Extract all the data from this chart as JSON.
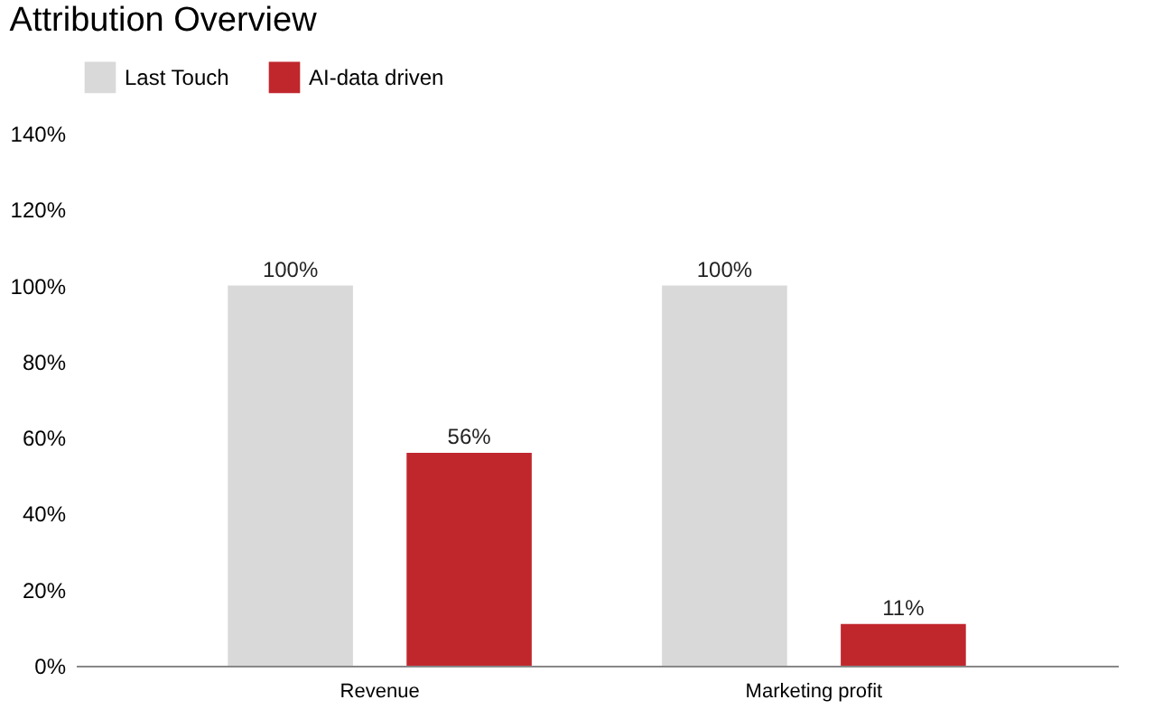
{
  "chart_data": {
    "type": "bar",
    "title": "Attribution Overview",
    "categories": [
      "Revenue",
      "Marketing profit"
    ],
    "series": [
      {
        "name": "Last Touch",
        "color": "#d9d9d9",
        "values": [
          100,
          100
        ],
        "value_labels": [
          "100%",
          "100%"
        ]
      },
      {
        "name": "AI-data driven",
        "color": "#c0272d",
        "values": [
          56,
          11
        ],
        "value_labels": [
          "56%",
          "11%"
        ]
      }
    ],
    "ylim": [
      0,
      140
    ],
    "yticks": [
      {
        "value": 0,
        "label": "0%"
      },
      {
        "value": 20,
        "label": "20%"
      },
      {
        "value": 40,
        "label": "40%"
      },
      {
        "value": 60,
        "label": "60%"
      },
      {
        "value": 80,
        "label": "80%"
      },
      {
        "value": 100,
        "label": "100%"
      },
      {
        "value": 120,
        "label": "120%"
      },
      {
        "value": 140,
        "label": "140%"
      }
    ],
    "grid": false,
    "legend": "top"
  }
}
